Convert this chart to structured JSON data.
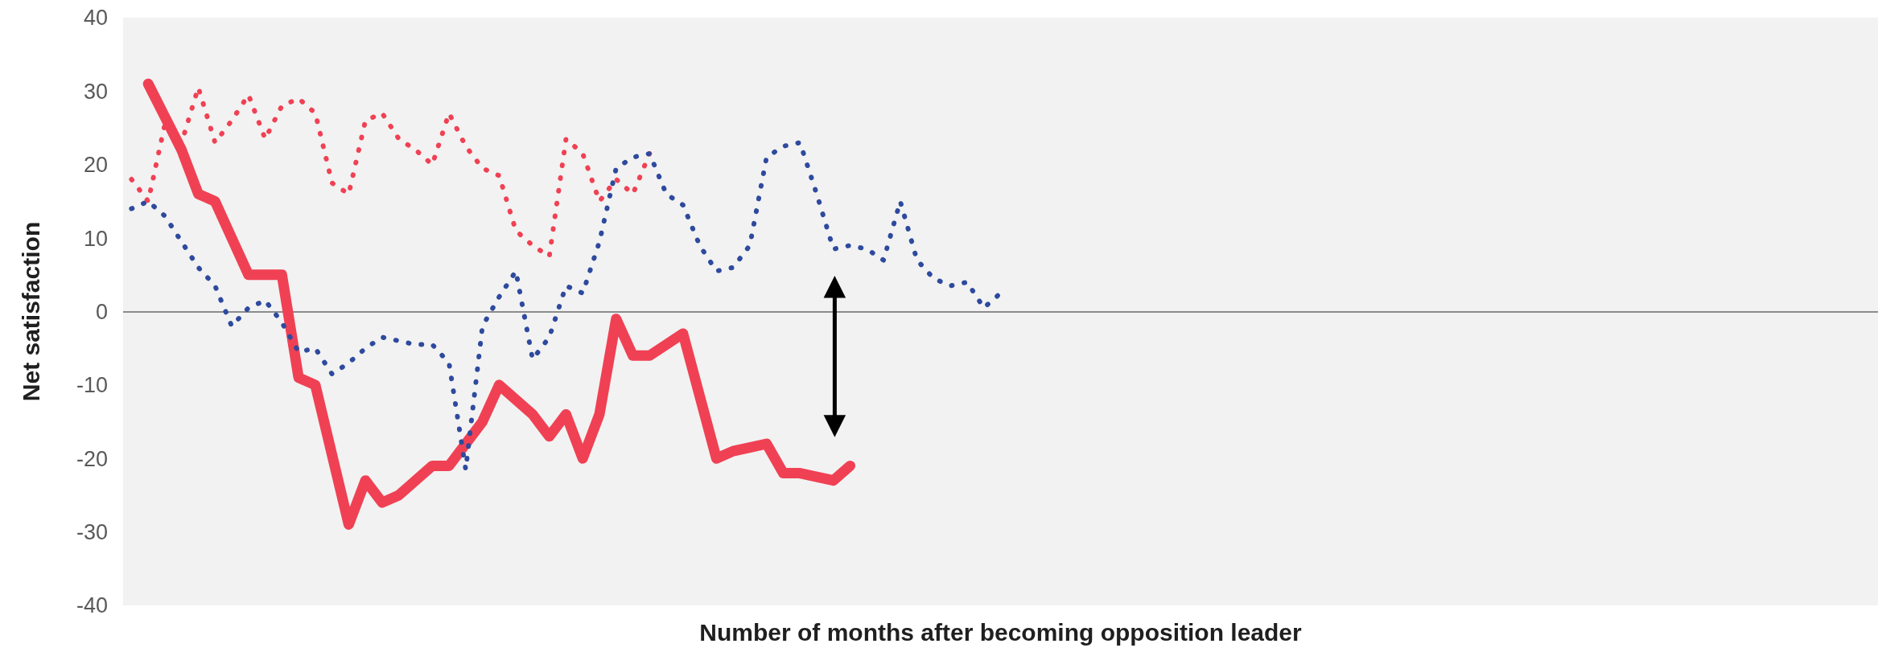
{
  "chart_data": {
    "type": "line",
    "xlabel": "Number of months after becoming opposition leader",
    "ylabel": "Net satisfaction",
    "categories": [
      null,
      null,
      null,
      null,
      null,
      null,
      null,
      null,
      null,
      null,
      null,
      null,
      null,
      null,
      null,
      null,
      null,
      null,
      null,
      null,
      null,
      null,
      null,
      null,
      null,
      null,
      null,
      null,
      null,
      null,
      null,
      null,
      null,
      null,
      null,
      null,
      null,
      null,
      null,
      null,
      null,
      null,
      null,
      null,
      null,
      null,
      null,
      null,
      null,
      null,
      null,
      null,
      null,
      null,
      null,
      null,
      null,
      null,
      null,
      null,
      null,
      null,
      null,
      null,
      null,
      null,
      null,
      null,
      null,
      null,
      null,
      null,
      null,
      null,
      null,
      null,
      null,
      null,
      null,
      null,
      null,
      null,
      null,
      null,
      null,
      null,
      null,
      null,
      null,
      null,
      null,
      null,
      null,
      null,
      null,
      null,
      null,
      null,
      null,
      null,
      null,
      null,
      null,
      null,
      null
    ],
    "series": [
      {
        "color": "#f04154",
        "line_style": "solid",
        "values": [
          null,
          31,
          26.5,
          22,
          16,
          15,
          10,
          5,
          5,
          5,
          -9,
          -10,
          -19.5,
          -29,
          -23,
          -26,
          -25,
          -23,
          -21,
          -21,
          -18,
          -15,
          -10,
          -12,
          -14,
          -17,
          -14,
          -20,
          -14,
          -1,
          -6,
          -6,
          -4.5,
          -3,
          -11.5,
          -20,
          -19,
          -18.5,
          -18,
          -22,
          -22,
          -22.5,
          -23,
          -21,
          null,
          null,
          null,
          null,
          null,
          null,
          null,
          null,
          null,
          null,
          null,
          null,
          null,
          null,
          null,
          null,
          null,
          null,
          null,
          null,
          null,
          null,
          null,
          null,
          null,
          null,
          null,
          null,
          null,
          null,
          null,
          null,
          null,
          null,
          null,
          null,
          null,
          null,
          null,
          null,
          null,
          null,
          null,
          null,
          null,
          null,
          null,
          null,
          null,
          null,
          null,
          null,
          null,
          null,
          null,
          null,
          null,
          null,
          null,
          null,
          null
        ]
      },
      {
        "color": "#f04154",
        "line_style": "dotted",
        "values": [
          18,
          15,
          25.5,
          23,
          30.5,
          23,
          26,
          29.5,
          23.5,
          28,
          29,
          27,
          17.5,
          16,
          26,
          27,
          23.5,
          22,
          20,
          27,
          22.5,
          19.5,
          18.5,
          11,
          9,
          7.5,
          23.5,
          21.5,
          15,
          18,
          16,
          21.5,
          null,
          null,
          null,
          null,
          null,
          null,
          null,
          null,
          null,
          null,
          null,
          null,
          null,
          null,
          null,
          null,
          null,
          null,
          null,
          null,
          null,
          null,
          null,
          null,
          null,
          null,
          null,
          null,
          null,
          null,
          null,
          null,
          null,
          null,
          null,
          null,
          null,
          null,
          null,
          null,
          null,
          null,
          null,
          null,
          null,
          null,
          null,
          null,
          null,
          null,
          null,
          null,
          null,
          null,
          null,
          null,
          null,
          null,
          null,
          null,
          null,
          null,
          null,
          null,
          null,
          null,
          null,
          null,
          null,
          null,
          null,
          null,
          null
        ]
      },
      {
        "color": "#2e4a9e",
        "line_style": "dotted",
        "values": [
          14,
          15,
          13,
          9.5,
          6,
          3.5,
          -2,
          0.5,
          1.5,
          -1.5,
          -5.5,
          -5,
          -8.5,
          -7,
          -5,
          -3.5,
          -4,
          -4.5,
          -4.5,
          -7,
          -21.5,
          -2,
          2,
          5.5,
          -6.5,
          -3.5,
          3.5,
          2.5,
          9.5,
          19.5,
          21,
          21.5,
          16,
          14.5,
          9,
          5.5,
          6,
          9,
          21,
          22.5,
          23,
          16,
          8.5,
          9,
          8.5,
          7,
          15,
          7,
          4.5,
          3.5,
          4,
          0.5,
          2.5,
          null,
          null,
          null,
          null,
          null,
          null,
          null,
          null,
          null,
          null,
          null,
          null,
          null,
          null,
          null,
          null,
          null,
          null,
          null,
          null,
          null,
          null,
          null,
          null,
          null,
          null,
          null,
          null,
          null,
          null,
          null,
          null,
          null,
          null,
          null,
          null,
          null,
          null,
          null,
          null,
          null,
          null,
          null,
          null,
          null,
          null,
          null,
          null,
          null,
          null,
          null,
          null
        ]
      }
    ],
    "ylim": [
      -40,
      40
    ],
    "yticks": [
      -40,
      -30,
      -20,
      -10,
      0,
      10,
      20,
      30,
      40
    ],
    "tick_labels": "y"
  }
}
